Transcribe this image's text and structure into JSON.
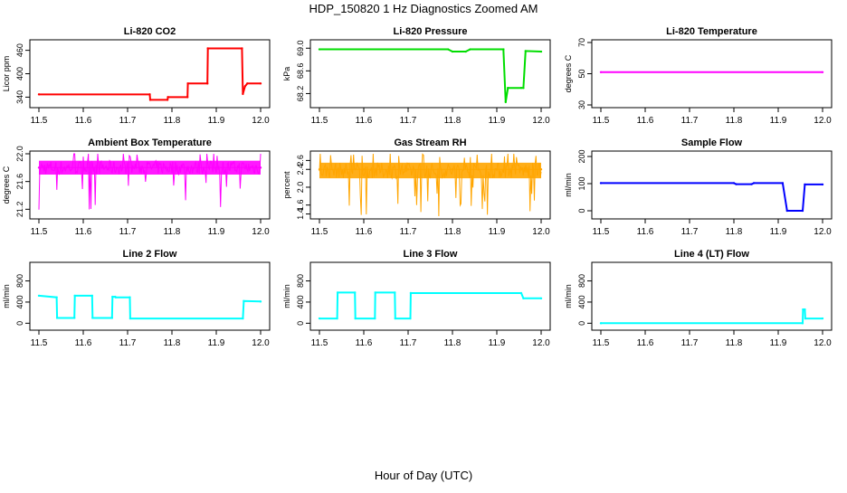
{
  "figure": {
    "title": "HDP_150820  1 Hz Diagnostics Zoomed AM",
    "xlabel": "Hour of Day (UTC)"
  },
  "chart_data": [
    {
      "type": "line",
      "title": "Li-820 CO2",
      "ylabel": "Licor ppm",
      "color": "#ff0000",
      "xlim": [
        11.5,
        12.0
      ],
      "ylim": [
        320,
        480
      ],
      "xticks": [
        "11.5",
        "11.6",
        "11.7",
        "11.8",
        "11.9",
        "12.0"
      ],
      "xtick_values": [
        11.5,
        11.6,
        11.7,
        11.8,
        11.9,
        12.0
      ],
      "yticks": [
        "340",
        "400",
        "460"
      ],
      "ytick_values": [
        340,
        400,
        460
      ],
      "x": [
        11.5,
        11.75,
        11.751,
        11.79,
        11.791,
        11.835,
        11.836,
        11.88,
        11.881,
        11.958,
        11.96,
        11.965,
        11.97,
        12.0
      ],
      "y": [
        347,
        347,
        333,
        333,
        340,
        340,
        375,
        375,
        465,
        465,
        348,
        368,
        375,
        375
      ]
    },
    {
      "type": "line",
      "title": "Li-820 Pressure",
      "ylabel": "kPa",
      "color": "#00dd00",
      "xlim": [
        11.5,
        12.0
      ],
      "ylim": [
        68.0,
        69.1
      ],
      "xticks": [
        "11.5",
        "11.6",
        "11.7",
        "11.8",
        "11.9",
        "12.0"
      ],
      "xtick_values": [
        11.5,
        11.6,
        11.7,
        11.8,
        11.9,
        12.0
      ],
      "yticks": [
        "68.2",
        "68.6",
        "69.0"
      ],
      "ytick_values": [
        68.2,
        68.6,
        69.0
      ],
      "x": [
        11.5,
        11.79,
        11.8,
        11.83,
        11.84,
        11.915,
        11.92,
        11.925,
        11.955,
        11.96,
        11.965,
        12.0
      ],
      "y": [
        68.98,
        68.98,
        68.94,
        68.94,
        68.98,
        68.98,
        68.05,
        68.3,
        68.3,
        68.3,
        68.95,
        68.94
      ]
    },
    {
      "type": "line",
      "title": "Li-820 Temperature",
      "ylabel": "degrees C",
      "color": "#ff00ff",
      "xlim": [
        11.5,
        12.0
      ],
      "ylim": [
        30,
        70
      ],
      "xticks": [
        "11.5",
        "11.6",
        "11.7",
        "11.8",
        "11.9",
        "12.0"
      ],
      "xtick_values": [
        11.5,
        11.6,
        11.7,
        11.8,
        11.9,
        12.0
      ],
      "yticks": [
        "30",
        "50",
        "70"
      ],
      "ytick_values": [
        30,
        50,
        70
      ],
      "x": [
        11.5,
        12.0
      ],
      "y": [
        51,
        51
      ]
    },
    {
      "type": "line",
      "title": "Ambient Box Temperature",
      "ylabel": "degrees C",
      "color": "#ff00ff",
      "xlim": [
        11.5,
        12.0
      ],
      "ylim": [
        21.1,
        22.0
      ],
      "xticks": [
        "11.5",
        "11.6",
        "11.7",
        "11.8",
        "11.9",
        "12.0"
      ],
      "xtick_values": [
        11.5,
        11.6,
        11.7,
        11.8,
        11.9,
        12.0
      ],
      "yticks": [
        "21.2",
        "21.6",
        "22.0"
      ],
      "ytick_values": [
        21.2,
        21.6,
        22.0
      ],
      "band": {
        "low": 21.7,
        "high": 21.9
      },
      "x": [
        11.5,
        11.6,
        11.7,
        11.8,
        11.9,
        12.0
      ],
      "y": [
        21.8,
        21.8,
        21.8,
        21.8,
        21.8,
        21.8
      ]
    },
    {
      "type": "line",
      "title": "Gas Stream RH",
      "ylabel": "percent",
      "color": "#ffa500",
      "xlim": [
        11.5,
        12.0
      ],
      "ylim": [
        1.35,
        2.75
      ],
      "xticks": [
        "11.5",
        "11.6",
        "11.7",
        "11.8",
        "11.9",
        "12.0"
      ],
      "xtick_values": [
        11.5,
        11.6,
        11.7,
        11.8,
        11.9,
        12.0
      ],
      "yticks": [
        "1.4",
        "1.6",
        "2.0",
        "2.4",
        "2.6"
      ],
      "ytick_values": [
        1.4,
        1.6,
        2.0,
        2.4,
        2.6
      ],
      "band": {
        "low": 2.2,
        "high": 2.55
      },
      "x": [
        11.5,
        11.6,
        11.7,
        11.8,
        11.9,
        12.0
      ],
      "y": [
        2.4,
        2.4,
        2.4,
        2.4,
        2.4,
        2.4
      ]
    },
    {
      "type": "line",
      "title": "Sample Flow",
      "ylabel": "ml/min",
      "color": "#0000ff",
      "xlim": [
        11.5,
        12.0
      ],
      "ylim": [
        -20,
        210
      ],
      "xticks": [
        "11.5",
        "11.6",
        "11.7",
        "11.8",
        "11.9",
        "12.0"
      ],
      "xtick_values": [
        11.5,
        11.6,
        11.7,
        11.8,
        11.9,
        12.0
      ],
      "yticks": [
        "0",
        "100",
        "200"
      ],
      "ytick_values": [
        0,
        100,
        200
      ],
      "x": [
        11.5,
        11.8,
        11.805,
        11.84,
        11.845,
        11.91,
        11.92,
        11.955,
        11.96,
        12.0
      ],
      "y": [
        102,
        102,
        98,
        98,
        102,
        102,
        0,
        0,
        97,
        97
      ]
    },
    {
      "type": "line",
      "title": "Line 2 Flow",
      "ylabel": "ml/min",
      "color": "#00ffff",
      "xlim": [
        11.5,
        12.0
      ],
      "ylim": [
        -80,
        1100
      ],
      "xticks": [
        "11.5",
        "11.6",
        "11.7",
        "11.8",
        "11.9",
        "12.0"
      ],
      "xtick_values": [
        11.5,
        11.6,
        11.7,
        11.8,
        11.9,
        12.0
      ],
      "yticks": [
        "0",
        "400",
        "800"
      ],
      "ytick_values": [
        0,
        400,
        800
      ],
      "x": [
        11.5,
        11.54,
        11.541,
        11.58,
        11.581,
        11.62,
        11.621,
        11.665,
        11.666,
        11.672,
        11.673,
        11.705,
        11.706,
        11.96,
        11.962,
        12.0
      ],
      "y": [
        520,
        490,
        100,
        100,
        520,
        520,
        100,
        100,
        500,
        500,
        490,
        490,
        90,
        90,
        420,
        410
      ]
    },
    {
      "type": "line",
      "title": "Line 3 Flow",
      "ylabel": "ml/min",
      "color": "#00ffff",
      "xlim": [
        11.5,
        12.0
      ],
      "ylim": [
        -80,
        1100
      ],
      "xticks": [
        "11.5",
        "11.6",
        "11.7",
        "11.8",
        "11.9",
        "12.0"
      ],
      "xtick_values": [
        11.5,
        11.6,
        11.7,
        11.8,
        11.9,
        12.0
      ],
      "yticks": [
        "0",
        "400",
        "800"
      ],
      "ytick_values": [
        0,
        400,
        800
      ],
      "x": [
        11.5,
        11.54,
        11.541,
        11.58,
        11.581,
        11.625,
        11.626,
        11.67,
        11.671,
        11.705,
        11.706,
        11.955,
        11.96,
        12.0
      ],
      "y": [
        90,
        90,
        580,
        580,
        90,
        90,
        580,
        580,
        90,
        90,
        570,
        570,
        470,
        470
      ]
    },
    {
      "type": "line",
      "title": "Line 4 (LT) Flow",
      "ylabel": "ml/min",
      "color": "#00ffff",
      "xlim": [
        11.5,
        12.0
      ],
      "ylim": [
        -80,
        1100
      ],
      "xticks": [
        "11.5",
        "11.6",
        "11.7",
        "11.8",
        "11.9",
        "12.0"
      ],
      "xtick_values": [
        11.5,
        11.6,
        11.7,
        11.8,
        11.9,
        12.0
      ],
      "yticks": [
        "0",
        "400",
        "800"
      ],
      "ytick_values": [
        0,
        400,
        800
      ],
      "x": [
        11.5,
        11.955,
        11.956,
        11.96,
        11.961,
        12.0
      ],
      "y": [
        0,
        0,
        260,
        260,
        90,
        90
      ]
    }
  ]
}
